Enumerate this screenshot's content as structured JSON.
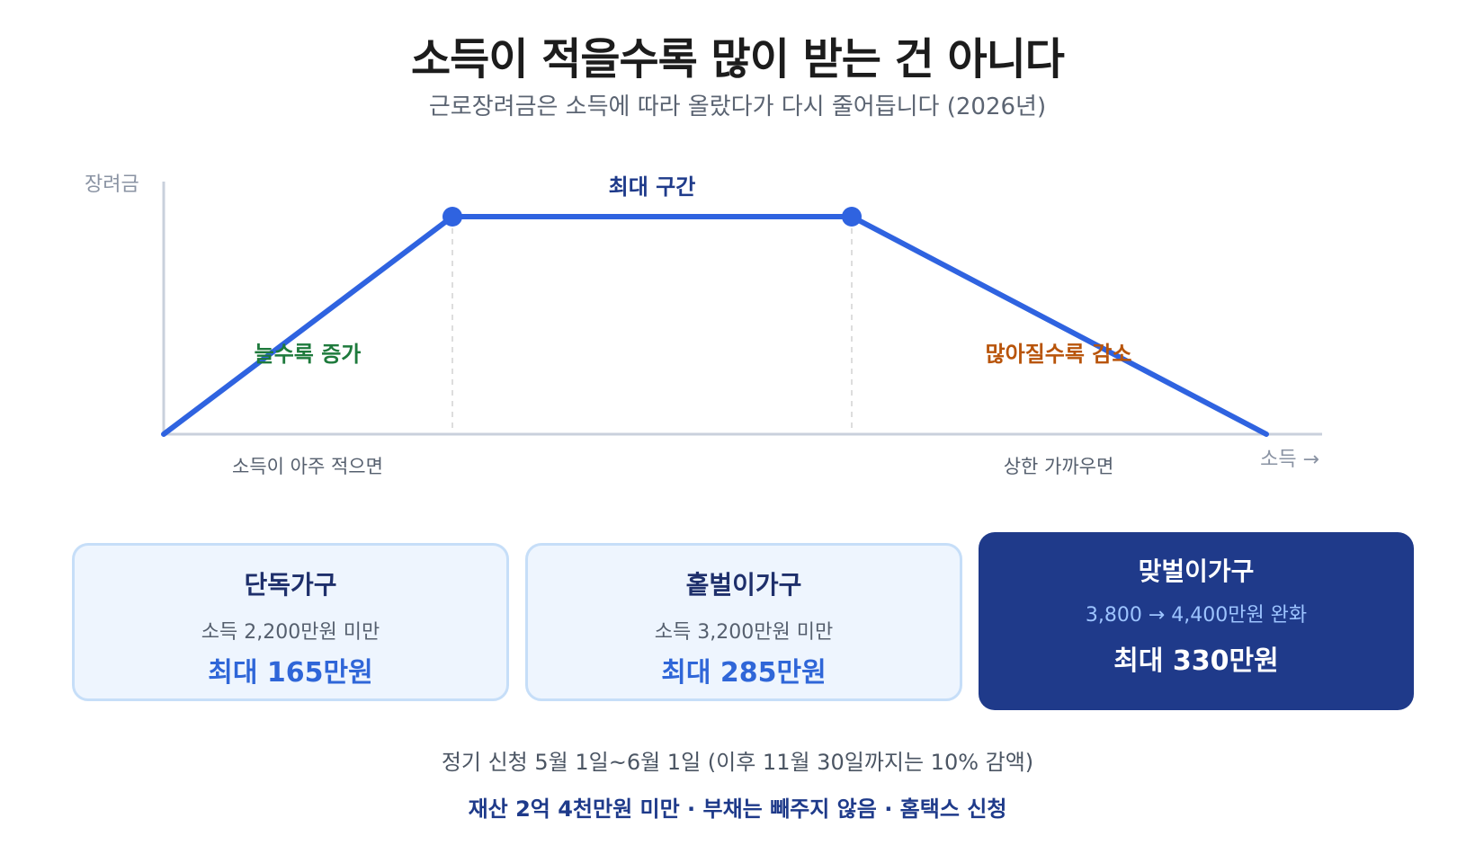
{
  "title": "소득이 적을수록 많이 받는 건 아니다",
  "subtitle": "근로장려금은 소득에 따라 올랐다가 다시 줄어듭니다 (2026년)",
  "diagram": {
    "y_axis_label": "장려금",
    "x_axis_label": "소득 →",
    "plateau_label": "최대 구간",
    "increase_label": "늘수록 증가",
    "decrease_label": "많아질수록 감소",
    "low_income_label": "소득이 아주 적으면",
    "near_limit_label": "상한 가까우면",
    "colors": {
      "line": "#2f63e0",
      "axis": "#c9d0dc",
      "plateau_text": "#1e3a8a",
      "increase_text": "#1e7a3c",
      "decrease_text": "#b8540a",
      "guide": "#dddddd"
    }
  },
  "cards": [
    {
      "title": "단독가구",
      "condition": "소득 2,200만원 미만",
      "amount": "최대 165만원"
    },
    {
      "title": "홑벌이가구",
      "condition": "소득 3,200만원 미만",
      "amount": "최대 285만원"
    },
    {
      "title": "맞벌이가구",
      "condition": "3,800 → 4,400만원 완화",
      "amount": "최대 330만원"
    }
  ],
  "notes": {
    "schedule": "정기 신청 5월 1일~6월 1일 (이후 11월 30일까지는 10% 감액)",
    "requirements": "재산 2억 4천만원 미만 · 부채는 빼주지 않음 · 홈택스 신청"
  }
}
